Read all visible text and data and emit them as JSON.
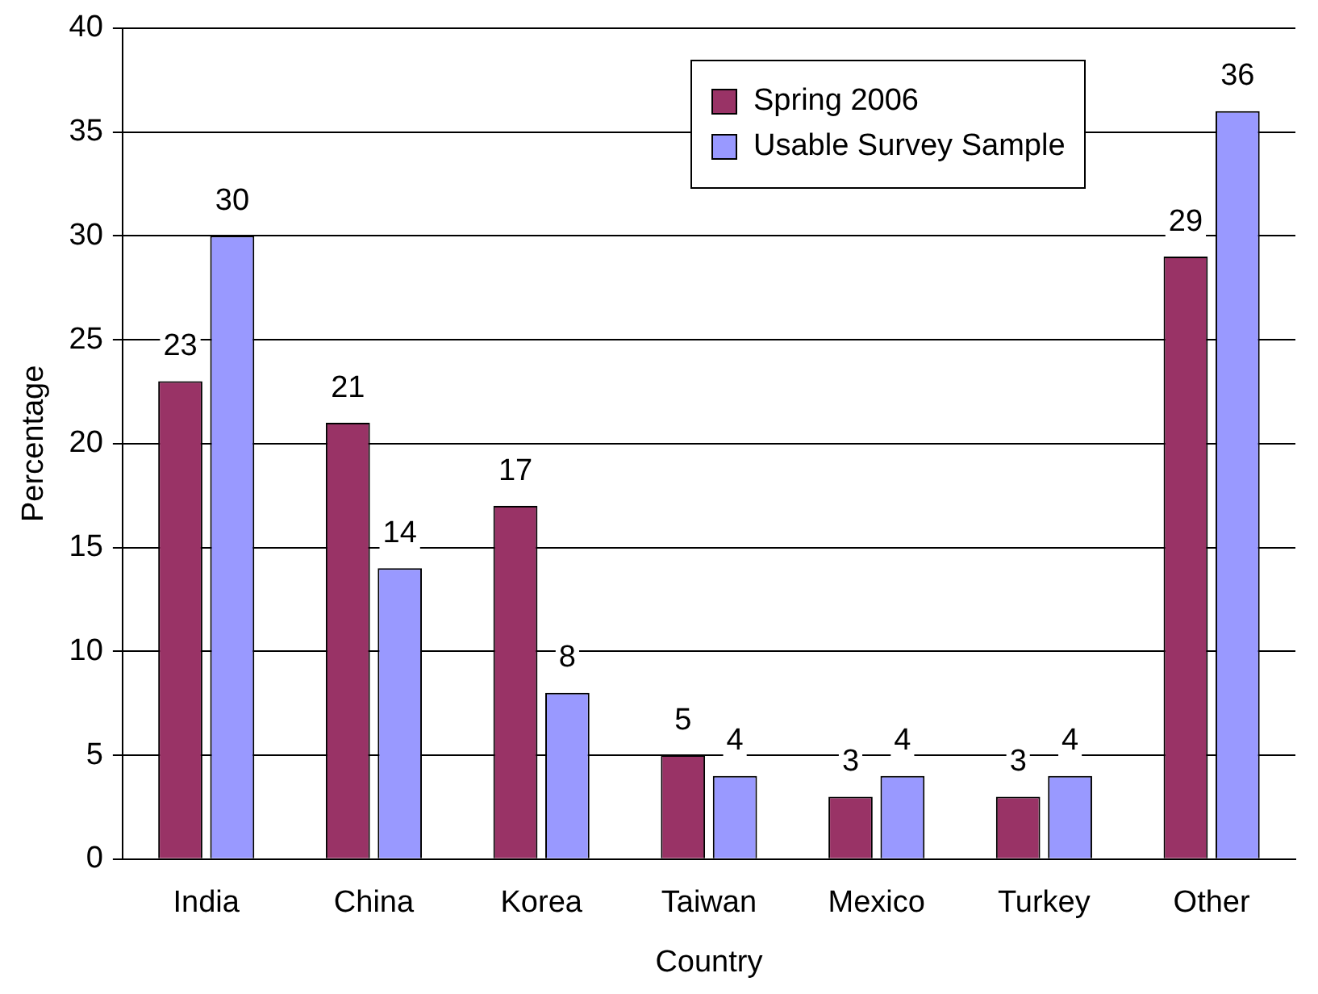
{
  "chart_data": {
    "type": "bar",
    "xlabel": "Country",
    "ylabel": "Percentage",
    "categories": [
      "India",
      "China",
      "Korea",
      "Taiwan",
      "Mexico",
      "Turkey",
      "Other"
    ],
    "series": [
      {
        "name": "Spring 2006",
        "color": "#993366",
        "values": [
          23,
          21,
          17,
          5,
          3,
          3,
          29
        ]
      },
      {
        "name": "Usable Survey Sample",
        "color": "#9999ff",
        "values": [
          30,
          14,
          8,
          4,
          4,
          4,
          36
        ]
      }
    ],
    "ylim": [
      0,
      40
    ],
    "yticks": [
      0,
      5,
      10,
      15,
      20,
      25,
      30,
      35,
      40
    ],
    "grid": "y",
    "legend": "top right",
    "data_labels": true
  }
}
